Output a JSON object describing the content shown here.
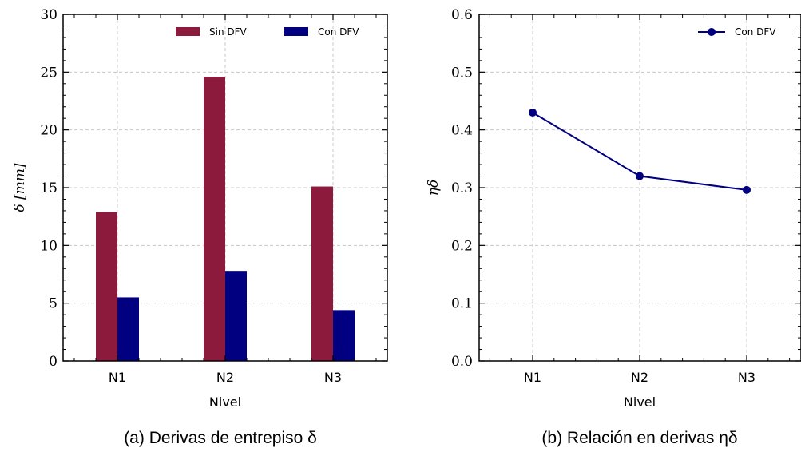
{
  "chart_data": [
    {
      "type": "bar",
      "categories": [
        "N1",
        "N2",
        "N3"
      ],
      "series": [
        {
          "name": "Sin DFV",
          "values": [
            12.9,
            24.6,
            15.1
          ],
          "color": "#8b1a3c"
        },
        {
          "name": "Con DFV",
          "values": [
            5.5,
            7.8,
            4.4
          ],
          "color": "#000080"
        }
      ],
      "xlabel": "Nivel",
      "ylabel": "δ [mm]",
      "ylim": [
        0,
        30
      ],
      "yticks": [
        "0",
        "5",
        "10",
        "15",
        "20",
        "25",
        "30"
      ],
      "grid": true,
      "legend": "top-right",
      "caption": "(a) Derivas de entrepiso δ"
    },
    {
      "type": "line",
      "categories": [
        "N1",
        "N2",
        "N3"
      ],
      "series": [
        {
          "name": "Con DFV",
          "values": [
            0.43,
            0.32,
            0.296
          ],
          "color": "#000080"
        }
      ],
      "xlabel": "Nivel",
      "ylabel": "ηδ",
      "ylim": [
        0.0,
        0.6
      ],
      "yticks": [
        "0.0",
        "0.1",
        "0.2",
        "0.3",
        "0.4",
        "0.5",
        "0.6"
      ],
      "grid": true,
      "legend": "top-right",
      "caption": "(b) Relación en derivas ηδ"
    }
  ]
}
